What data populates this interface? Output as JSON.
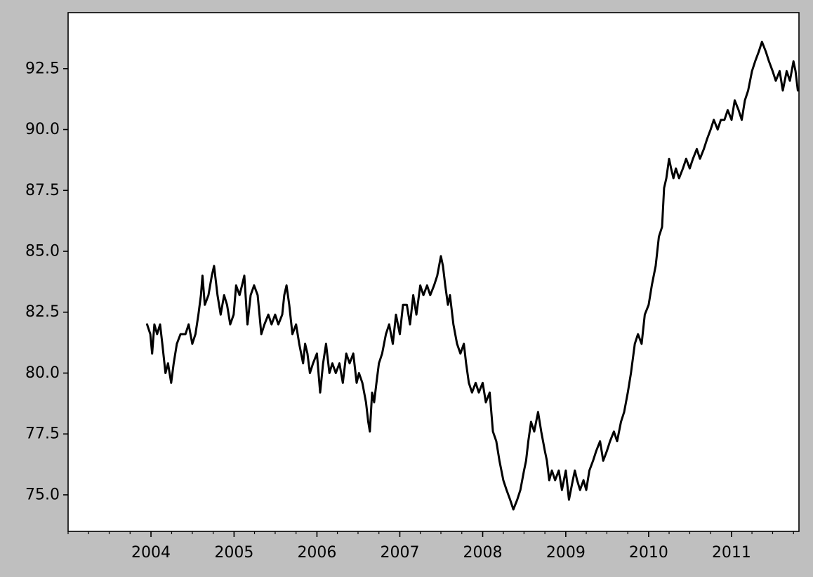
{
  "chart_data": {
    "type": "line",
    "title": "",
    "xlabel": "",
    "ylabel": "",
    "xlim": [
      "2003-01-01",
      "2011-10-25"
    ],
    "ylim": [
      73.5,
      94.8
    ],
    "grid": false,
    "x_ticks": [
      "2004",
      "2005",
      "2006",
      "2007",
      "2008",
      "2009",
      "2010",
      "2011"
    ],
    "y_ticks": [
      "75.0",
      "77.5",
      "80.0",
      "82.5",
      "85.0",
      "87.5",
      "90.0",
      "92.5"
    ],
    "colors": {
      "line": "#000000",
      "figure_background": "#bfbfbf",
      "plot_background": "#ffffff"
    },
    "series": [
      {
        "x": [
          "2003-12-15",
          "2003-12-29",
          "2004-01-06",
          "2004-01-16",
          "2004-01-28",
          "2004-02-10",
          "2004-02-20",
          "2004-03-05",
          "2004-03-16",
          "2004-03-30",
          "2004-04-10",
          "2004-04-24",
          "2004-05-10",
          "2004-06-01",
          "2004-06-15",
          "2004-07-01",
          "2004-07-15",
          "2004-07-28",
          "2004-08-08",
          "2004-08-15",
          "2004-08-25",
          "2004-09-10",
          "2004-09-25",
          "2004-10-05",
          "2004-10-20",
          "2004-11-03",
          "2004-11-18",
          "2004-12-01",
          "2004-12-15",
          "2004-12-30",
          "2005-01-10",
          "2005-01-25",
          "2005-02-05",
          "2005-02-15",
          "2005-03-01",
          "2005-03-15",
          "2005-03-30",
          "2005-04-15",
          "2005-05-01",
          "2005-05-15",
          "2005-06-01",
          "2005-06-15",
          "2005-07-01",
          "2005-07-15",
          "2005-08-01",
          "2005-08-10",
          "2005-08-20",
          "2005-09-01",
          "2005-09-15",
          "2005-10-01",
          "2005-10-15",
          "2005-11-01",
          "2005-11-10",
          "2005-11-20",
          "2005-12-01",
          "2005-12-15",
          "2006-01-01",
          "2006-01-15",
          "2006-01-28",
          "2006-02-10",
          "2006-02-25",
          "2006-03-10",
          "2006-03-25",
          "2006-04-10",
          "2006-04-25",
          "2006-05-10",
          "2006-05-25",
          "2006-06-10",
          "2006-06-25",
          "2006-07-05",
          "2006-07-20",
          "2006-08-05",
          "2006-08-15",
          "2006-08-22",
          "2006-09-01",
          "2006-09-10",
          "2006-09-20",
          "2006-10-01",
          "2006-10-15",
          "2006-11-01",
          "2006-11-15",
          "2006-12-01",
          "2006-12-15",
          "2007-01-01",
          "2007-01-15",
          "2007-02-01",
          "2007-02-15",
          "2007-03-01",
          "2007-03-15",
          "2007-04-01",
          "2007-04-15",
          "2007-05-01",
          "2007-05-15",
          "2007-06-01",
          "2007-06-15",
          "2007-07-01",
          "2007-07-10",
          "2007-07-20",
          "2007-08-01",
          "2007-08-10",
          "2007-08-25",
          "2007-09-10",
          "2007-09-25",
          "2007-10-10",
          "2007-10-20",
          "2007-11-01",
          "2007-11-15",
          "2007-12-01",
          "2007-12-15",
          "2008-01-01",
          "2008-01-15",
          "2008-02-01",
          "2008-02-15",
          "2008-03-01",
          "2008-03-15",
          "2008-04-01",
          "2008-04-15",
          "2008-05-01",
          "2008-05-15",
          "2008-06-01",
          "2008-06-15",
          "2008-07-01",
          "2008-07-10",
          "2008-07-20",
          "2008-08-01",
          "2008-08-15",
          "2008-09-01",
          "2008-09-15",
          "2008-10-01",
          "2008-10-10",
          "2008-10-20",
          "2008-11-01",
          "2008-11-15",
          "2008-12-01",
          "2008-12-15",
          "2009-01-01",
          "2009-01-15",
          "2009-02-01",
          "2009-02-10",
          "2009-02-20",
          "2009-03-05",
          "2009-03-20",
          "2009-04-01",
          "2009-04-15",
          "2009-05-01",
          "2009-05-15",
          "2009-06-01",
          "2009-06-15",
          "2009-07-01",
          "2009-07-15",
          "2009-08-01",
          "2009-08-15",
          "2009-09-01",
          "2009-09-15",
          "2009-10-01",
          "2009-10-15",
          "2009-11-01",
          "2009-11-15",
          "2009-12-01",
          "2009-12-15",
          "2010-01-01",
          "2010-01-15",
          "2010-02-01",
          "2010-02-15",
          "2010-03-01",
          "2010-03-10",
          "2010-03-20",
          "2010-04-01",
          "2010-04-10",
          "2010-04-20",
          "2010-05-01",
          "2010-05-15",
          "2010-06-01",
          "2010-06-15",
          "2010-07-01",
          "2010-07-15",
          "2010-08-01",
          "2010-08-15",
          "2010-09-01",
          "2010-09-15",
          "2010-10-01",
          "2010-10-15",
          "2010-11-01",
          "2010-11-15",
          "2010-12-01",
          "2010-12-15",
          "2011-01-01",
          "2011-01-15",
          "2011-02-01",
          "2011-02-15",
          "2011-03-01",
          "2011-03-15",
          "2011-04-01",
          "2011-04-15",
          "2011-05-01",
          "2011-05-15",
          "2011-06-01",
          "2011-06-15",
          "2011-07-01",
          "2011-07-15",
          "2011-08-01",
          "2011-08-15",
          "2011-09-01",
          "2011-09-15",
          "2011-10-01",
          "2011-10-10",
          "2011-10-20"
        ],
        "y": [
          82.0,
          81.6,
          80.8,
          82.0,
          81.6,
          82.0,
          81.2,
          80.0,
          80.4,
          79.6,
          80.4,
          81.2,
          81.6,
          81.6,
          82.0,
          81.2,
          81.6,
          82.4,
          83.2,
          84.0,
          82.8,
          83.2,
          84.0,
          84.4,
          83.2,
          82.4,
          83.2,
          82.8,
          82.0,
          82.4,
          83.6,
          83.2,
          83.6,
          84.0,
          82.0,
          83.2,
          83.6,
          83.2,
          81.6,
          82.0,
          82.4,
          82.0,
          82.4,
          82.0,
          82.4,
          83.2,
          83.6,
          82.8,
          81.6,
          82.0,
          81.2,
          80.4,
          81.2,
          80.8,
          80.0,
          80.4,
          80.8,
          79.2,
          80.4,
          81.2,
          80.0,
          80.4,
          80.0,
          80.4,
          79.6,
          80.8,
          80.4,
          80.8,
          79.6,
          80.0,
          79.6,
          78.8,
          78.0,
          77.6,
          79.2,
          78.8,
          79.6,
          80.4,
          80.8,
          81.6,
          82.0,
          81.2,
          82.4,
          81.6,
          82.8,
          82.8,
          82.0,
          83.2,
          82.4,
          83.6,
          83.2,
          83.6,
          83.2,
          83.6,
          84.0,
          84.8,
          84.4,
          83.6,
          82.8,
          83.2,
          82.0,
          81.2,
          80.8,
          81.2,
          80.4,
          79.6,
          79.2,
          79.6,
          79.2,
          79.6,
          78.8,
          79.2,
          77.6,
          77.2,
          76.4,
          75.6,
          75.2,
          74.8,
          74.4,
          74.8,
          75.2,
          76.0,
          76.4,
          77.2,
          78.0,
          77.6,
          78.4,
          77.6,
          76.8,
          76.4,
          75.6,
          76.0,
          75.6,
          76.0,
          75.2,
          76.0,
          74.8,
          75.6,
          76.0,
          75.6,
          75.2,
          75.6,
          75.2,
          76.0,
          76.4,
          76.8,
          77.2,
          76.4,
          76.8,
          77.2,
          77.6,
          77.2,
          78.0,
          78.4,
          79.2,
          80.0,
          81.2,
          81.6,
          81.2,
          82.4,
          82.8,
          83.6,
          84.4,
          85.6,
          86.0,
          87.6,
          88.0,
          88.8,
          88.4,
          88.0,
          88.4,
          88.0,
          88.4,
          88.8,
          88.4,
          88.8,
          89.2,
          88.8,
          89.2,
          89.6,
          90.0,
          90.4,
          90.0,
          90.4,
          90.4,
          90.8,
          90.4,
          91.2,
          90.8,
          90.4,
          91.2,
          91.6,
          92.4,
          92.8,
          93.2,
          93.6,
          93.2,
          92.8,
          92.4,
          92.0,
          92.4,
          91.6,
          92.4,
          92.0,
          92.8,
          92.4,
          91.6
        ]
      }
    ]
  }
}
